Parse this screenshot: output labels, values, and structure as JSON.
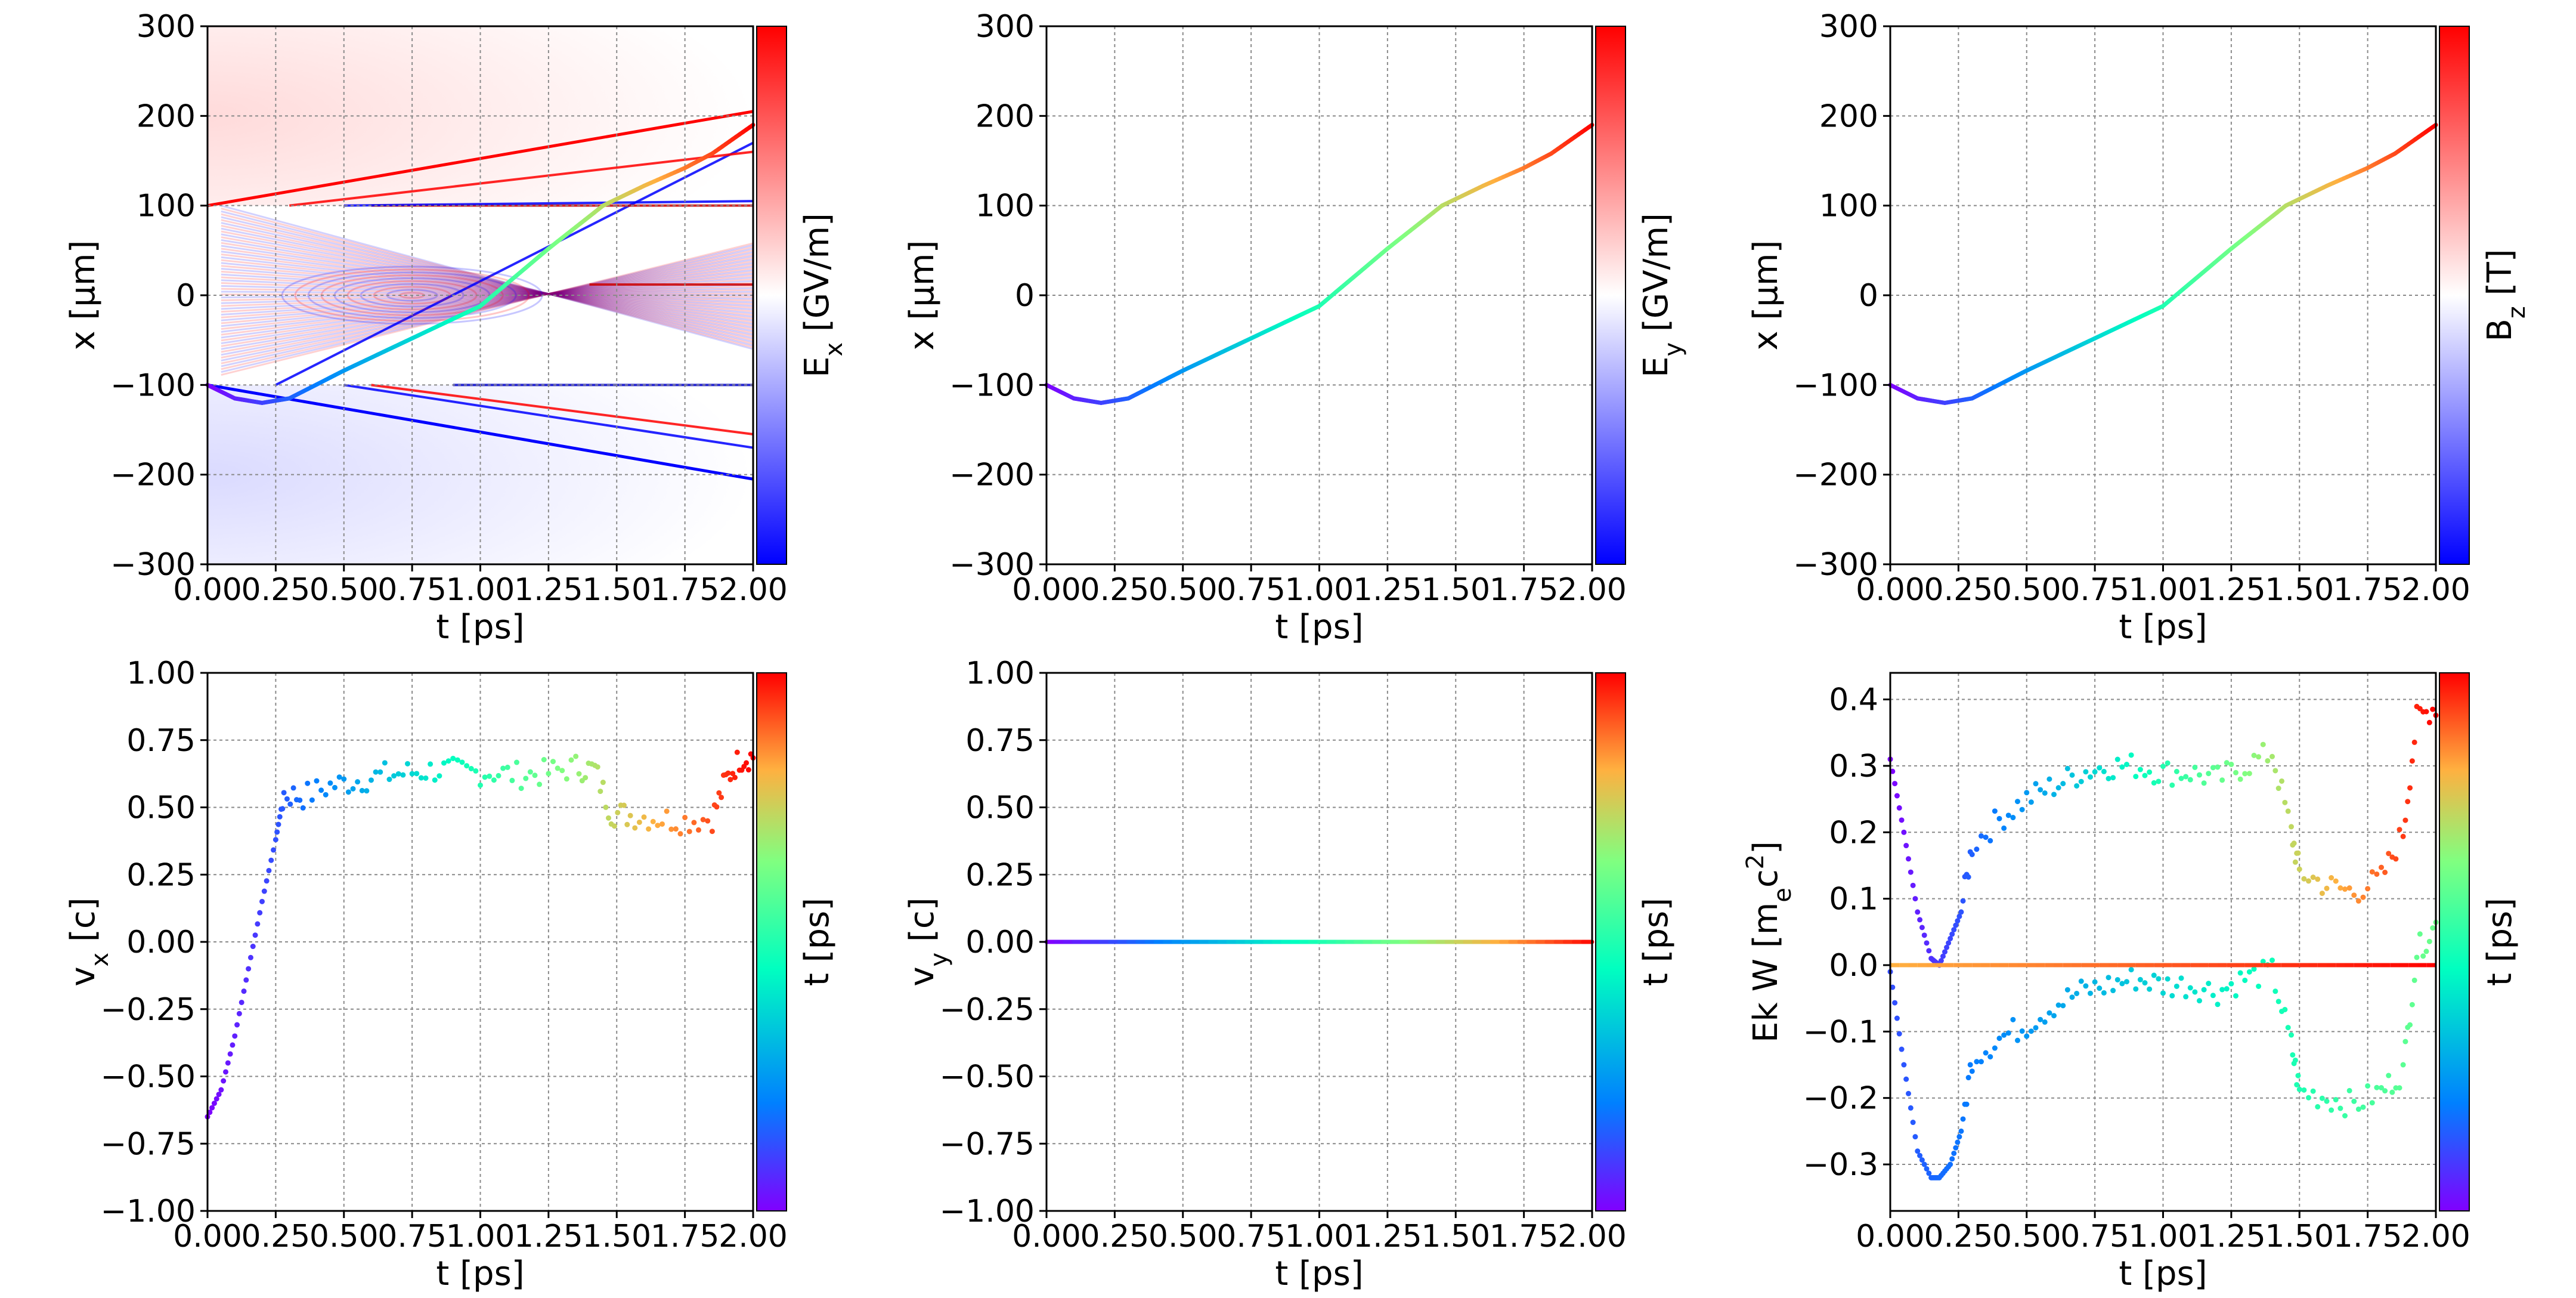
{
  "figure": {
    "cmap_div": [
      "#0000ff",
      "#ffffff",
      "#ff0000"
    ],
    "cmap_rainbow": [
      "#8000ff",
      "#0080ff",
      "#00ffc0",
      "#80ff80",
      "#ffb040",
      "#ff0000"
    ]
  },
  "chart_data": [
    {
      "type": "heatmap",
      "title": "",
      "xlabel": "t  [ps]",
      "ylabel": "x  [μm]",
      "colorbar_label": "E_x  [GV/m]",
      "xlim": [
        0,
        2.0
      ],
      "ylim": [
        -300,
        300
      ],
      "xticks": [
        "0.00",
        "0.25",
        "0.50",
        "0.75",
        "1.00",
        "1.25",
        "1.50",
        "1.75",
        "2.00"
      ],
      "yticks": [
        "−300",
        "−200",
        "−100",
        "0",
        "100",
        "200",
        "300"
      ],
      "grid": true,
      "field_fronts": [
        {
          "name": "upper",
          "x": [
            0.0,
            2.0
          ],
          "y": [
            100,
            205
          ]
        },
        {
          "name": "lower",
          "x": [
            0.0,
            2.0
          ],
          "y": [
            -100,
            -205
          ]
        }
      ],
      "trajectory": {
        "x": [
          0.0,
          0.1,
          0.2,
          0.3,
          0.5,
          0.75,
          1.0,
          1.25,
          1.45,
          1.6,
          1.75,
          1.85,
          2.0
        ],
        "y": [
          -100,
          -115,
          -120,
          -115,
          -84,
          -48,
          -12,
          52,
          100,
          122,
          142,
          158,
          190
        ]
      }
    },
    {
      "type": "line",
      "title": "",
      "xlabel": "t  [ps]",
      "ylabel": "x  [μm]",
      "colorbar_label": "E_y  [GV/m]",
      "xlim": [
        0,
        2.0
      ],
      "ylim": [
        -300,
        300
      ],
      "xticks": [
        "0.00",
        "0.25",
        "0.50",
        "0.75",
        "1.00",
        "1.25",
        "1.50",
        "1.75",
        "2.00"
      ],
      "yticks": [
        "−300",
        "−200",
        "−100",
        "0",
        "100",
        "200",
        "300"
      ],
      "grid": true,
      "x": [
        0.0,
        0.1,
        0.2,
        0.3,
        0.5,
        0.75,
        1.0,
        1.25,
        1.45,
        1.6,
        1.75,
        1.85,
        2.0
      ],
      "y": [
        -100,
        -115,
        -120,
        -115,
        -84,
        -48,
        -12,
        52,
        100,
        122,
        142,
        158,
        190
      ]
    },
    {
      "type": "line",
      "title": "",
      "xlabel": "t  [ps]",
      "ylabel": "x  [μm]",
      "colorbar_label": "B_z  [T]",
      "xlim": [
        0,
        2.0
      ],
      "ylim": [
        -300,
        300
      ],
      "xticks": [
        "0.00",
        "0.25",
        "0.50",
        "0.75",
        "1.00",
        "1.25",
        "1.50",
        "1.75",
        "2.00"
      ],
      "yticks": [
        "−300",
        "−200",
        "−100",
        "0",
        "100",
        "200",
        "300"
      ],
      "grid": true,
      "x": [
        0.0,
        0.1,
        0.2,
        0.3,
        0.5,
        0.75,
        1.0,
        1.25,
        1.45,
        1.6,
        1.75,
        1.85,
        2.0
      ],
      "y": [
        -100,
        -115,
        -120,
        -115,
        -84,
        -48,
        -12,
        52,
        100,
        122,
        142,
        158,
        190
      ]
    },
    {
      "type": "scatter",
      "title": "",
      "xlabel": "t  [ps]",
      "ylabel": "v_x [c]",
      "colorbar_label": "t  [ps]",
      "xlim": [
        0,
        2.0
      ],
      "ylim": [
        -1.0,
        1.0
      ],
      "xticks": [
        "0.00",
        "0.25",
        "0.50",
        "0.75",
        "1.00",
        "1.25",
        "1.50",
        "1.75",
        "2.00"
      ],
      "yticks": [
        "−1.00",
        "−0.75",
        "−0.50",
        "−0.25",
        "0.00",
        "0.25",
        "0.50",
        "0.75",
        "1.00"
      ],
      "grid": true,
      "x": [
        0.0,
        0.05,
        0.1,
        0.15,
        0.2,
        0.25,
        0.28,
        0.35,
        0.45,
        0.55,
        0.65,
        0.75,
        0.85,
        0.95,
        1.05,
        1.15,
        1.25,
        1.35,
        1.42,
        1.48,
        1.55,
        1.65,
        1.75,
        1.85,
        1.9,
        1.95,
        2.0
      ],
      "y": [
        -0.65,
        -0.55,
        -0.35,
        -0.1,
        0.15,
        0.38,
        0.55,
        0.54,
        0.58,
        0.6,
        0.62,
        0.63,
        0.64,
        0.63,
        0.63,
        0.62,
        0.63,
        0.65,
        0.64,
        0.48,
        0.47,
        0.46,
        0.45,
        0.46,
        0.6,
        0.68,
        0.69
      ]
    },
    {
      "type": "line",
      "title": "",
      "xlabel": "t  [ps]",
      "ylabel": "v_y [c]",
      "colorbar_label": "t  [ps]",
      "xlim": [
        0,
        2.0
      ],
      "ylim": [
        -1.0,
        1.0
      ],
      "xticks": [
        "0.00",
        "0.25",
        "0.50",
        "0.75",
        "1.00",
        "1.25",
        "1.50",
        "1.75",
        "2.00"
      ],
      "yticks": [
        "−1.00",
        "−0.75",
        "−0.50",
        "−0.25",
        "0.00",
        "0.25",
        "0.50",
        "0.75",
        "1.00"
      ],
      "grid": true,
      "x": [
        0.0,
        2.0
      ],
      "y": [
        0.0,
        0.0
      ]
    },
    {
      "type": "scatter",
      "title": "",
      "xlabel": "t  [ps]",
      "ylabel": "Ek W [m_ec^2]",
      "colorbar_label": "t  [ps]",
      "xlim": [
        0,
        2.0
      ],
      "ylim": [
        -0.37,
        0.44
      ],
      "xticks": [
        "0.00",
        "0.25",
        "0.50",
        "0.75",
        "1.00",
        "1.25",
        "1.50",
        "1.75",
        "2.00"
      ],
      "yticks": [
        "−0.3",
        "−0.2",
        "−0.1",
        "0.0",
        "0.1",
        "0.2",
        "0.3",
        "0.4"
      ],
      "grid": true,
      "series": [
        {
          "x": [
            0.0,
            0.05,
            0.1,
            0.15,
            0.18,
            0.22,
            0.26,
            0.3,
            0.4,
            0.5,
            0.6,
            0.7,
            0.8,
            0.9,
            1.0,
            1.1,
            1.2,
            1.3,
            1.4,
            1.47,
            1.5,
            1.6,
            1.7,
            1.8,
            1.88,
            1.93,
            2.0
          ],
          "y": [
            0.31,
            0.2,
            0.08,
            0.01,
            0.0,
            0.04,
            0.08,
            0.18,
            0.22,
            0.25,
            0.27,
            0.29,
            0.3,
            0.3,
            0.29,
            0.29,
            0.28,
            0.3,
            0.32,
            0.2,
            0.14,
            0.12,
            0.11,
            0.13,
            0.2,
            0.37,
            0.39
          ]
        },
        {
          "x": [
            0.0,
            0.05,
            0.1,
            0.15,
            0.18,
            0.22,
            0.26,
            0.3,
            0.4,
            0.5,
            0.6,
            0.7,
            0.8,
            0.9,
            1.0,
            1.1,
            1.2,
            1.3,
            1.4,
            1.47,
            1.5,
            1.6,
            1.7,
            1.8,
            1.88,
            1.93,
            2.0
          ],
          "y": [
            -0.01,
            -0.15,
            -0.28,
            -0.32,
            -0.32,
            -0.3,
            -0.25,
            -0.14,
            -0.11,
            -0.09,
            -0.06,
            -0.04,
            -0.03,
            -0.02,
            -0.03,
            -0.03,
            -0.04,
            -0.02,
            -0.01,
            -0.12,
            -0.19,
            -0.2,
            -0.21,
            -0.19,
            -0.16,
            0.02,
            0.06
          ]
        },
        {
          "x": [
            0.0,
            2.0
          ],
          "y": [
            0.0,
            0.0
          ]
        }
      ]
    }
  ]
}
